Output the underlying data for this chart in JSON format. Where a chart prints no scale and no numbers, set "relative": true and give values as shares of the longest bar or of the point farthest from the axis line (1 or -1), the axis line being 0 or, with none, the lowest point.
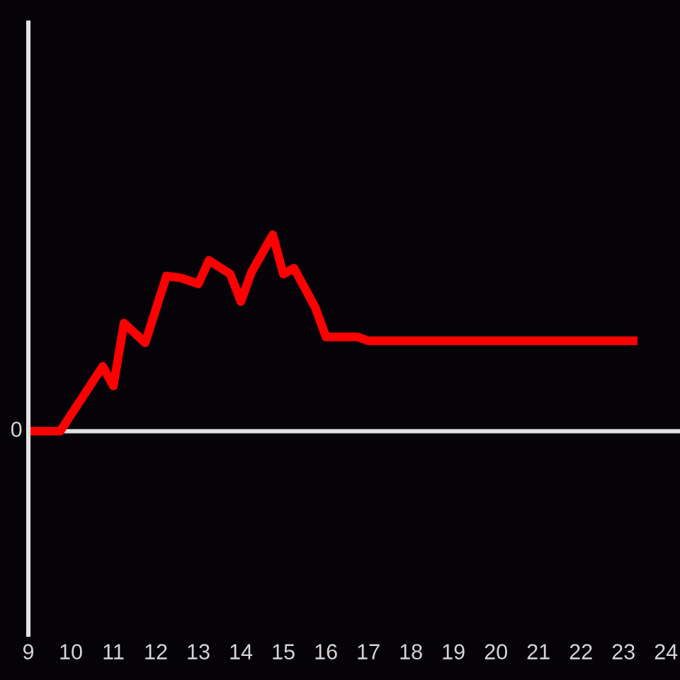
{
  "chart_data": {
    "type": "line",
    "x": [
      9,
      9.75,
      10.75,
      11,
      11.25,
      11.75,
      12.25,
      12.6,
      13,
      13.25,
      13.75,
      14,
      14.25,
      14.75,
      15,
      15.25,
      15.75,
      16,
      16.75,
      17,
      23.33
    ],
    "series": [
      {
        "color": "#ff0000",
        "values": [
          0,
          0,
          0.33,
          0.23,
          0.55,
          0.45,
          0.79,
          0.78,
          0.75,
          0.87,
          0.8,
          0.66,
          0.81,
          1,
          0.8,
          0.83,
          0.63,
          0.48,
          0.48,
          0.46,
          0.46
        ]
      }
    ],
    "relative": true,
    "xlim": [
      9,
      24.33
    ],
    "xticks": [
      9,
      10,
      11,
      12,
      13,
      14,
      15,
      16,
      17,
      18,
      19,
      20,
      21,
      22,
      23,
      24
    ],
    "ref_lines": [
      {
        "axis": "y",
        "value": 0,
        "label": "0",
        "color": "#e0e0e0"
      }
    ],
    "line_style": "solid",
    "grid": false
  }
}
